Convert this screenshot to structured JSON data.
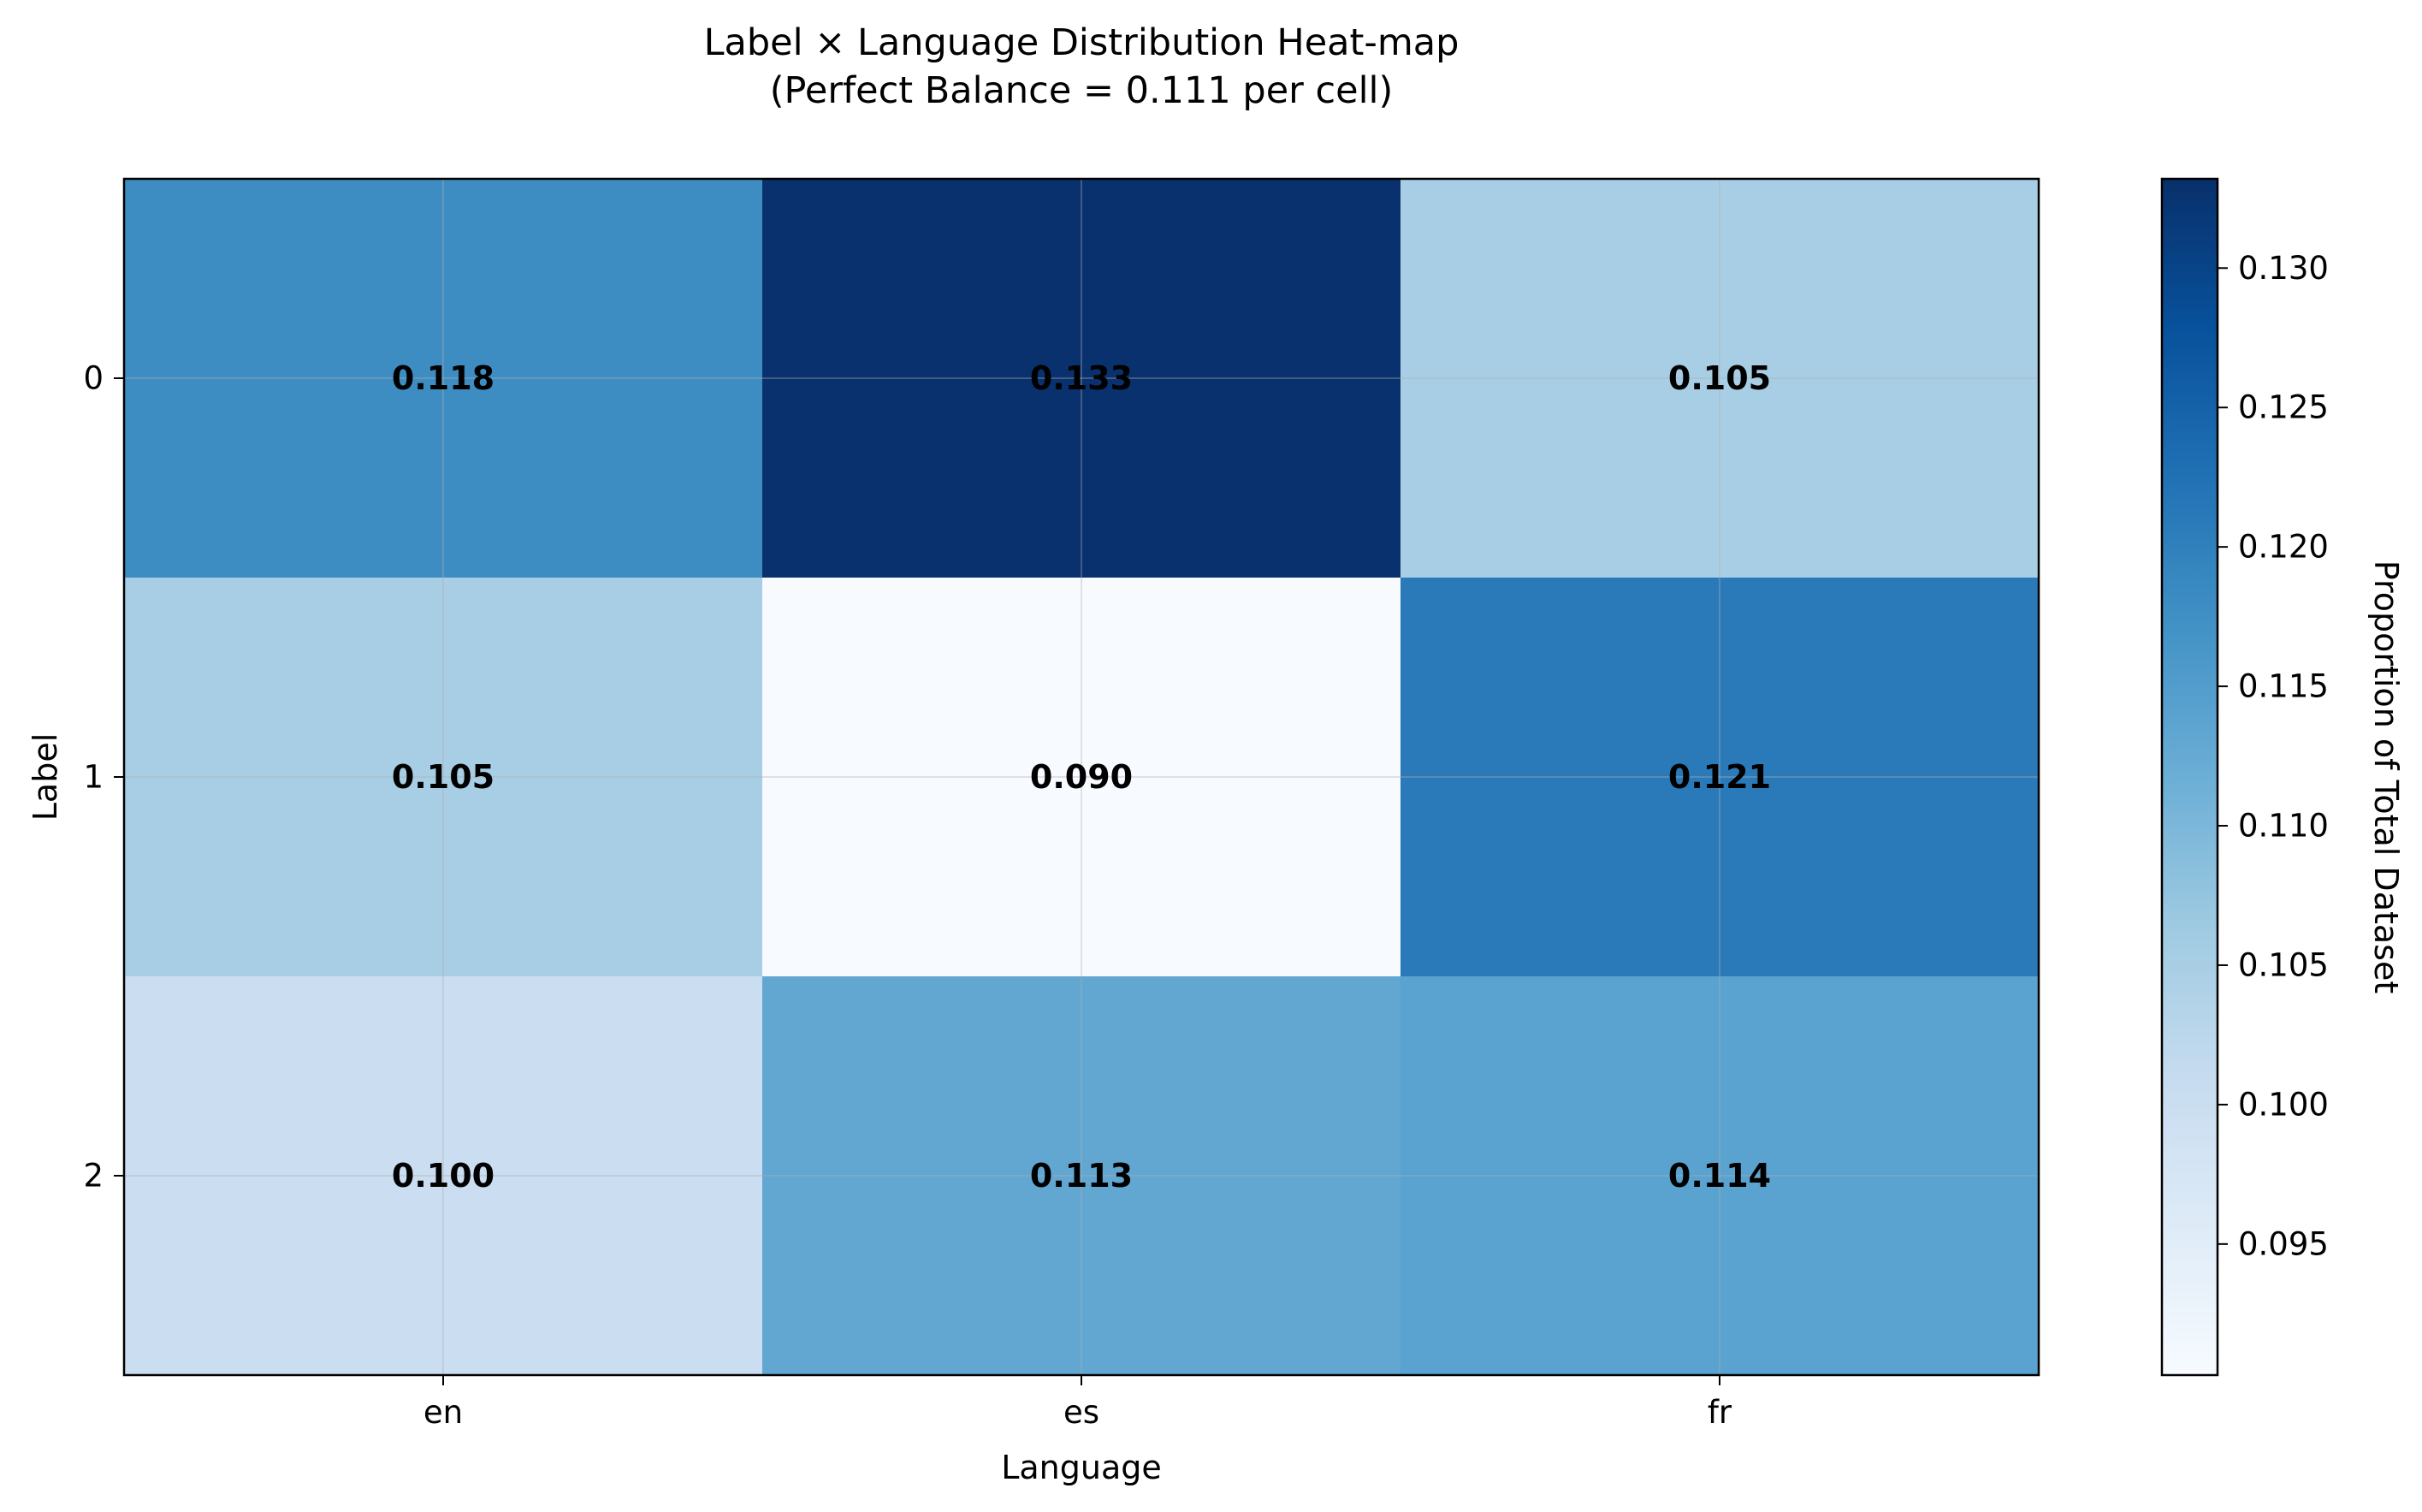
{
  "chart_data": {
    "type": "heatmap",
    "title": "Label × Language Distribution Heat-map",
    "subtitle": "(Perfect Balance = 0.111 per cell)",
    "xlabel": "Language",
    "ylabel": "Label",
    "x_categories": [
      "en",
      "es",
      "fr"
    ],
    "y_categories": [
      "0",
      "1",
      "2"
    ],
    "values": [
      [
        0.118,
        0.133,
        0.105
      ],
      [
        0.105,
        0.09,
        0.121
      ],
      [
        0.1,
        0.113,
        0.114
      ]
    ],
    "cell_labels": [
      [
        "0.118",
        "0.133",
        "0.105"
      ],
      [
        "0.105",
        "0.090",
        "0.121"
      ],
      [
        "0.100",
        "0.113",
        "0.114"
      ]
    ],
    "colormap": "Blues",
    "colorbar": {
      "label": "Proportion of Total Dataset",
      "range": [
        0.0903,
        0.1332
      ],
      "ticks": [
        0.095,
        0.1,
        0.105,
        0.11,
        0.115,
        0.12,
        0.125,
        0.13
      ],
      "tick_labels": [
        "0.095",
        "0.100",
        "0.105",
        "0.110",
        "0.115",
        "0.120",
        "0.125",
        "0.130"
      ]
    },
    "grid": true
  }
}
